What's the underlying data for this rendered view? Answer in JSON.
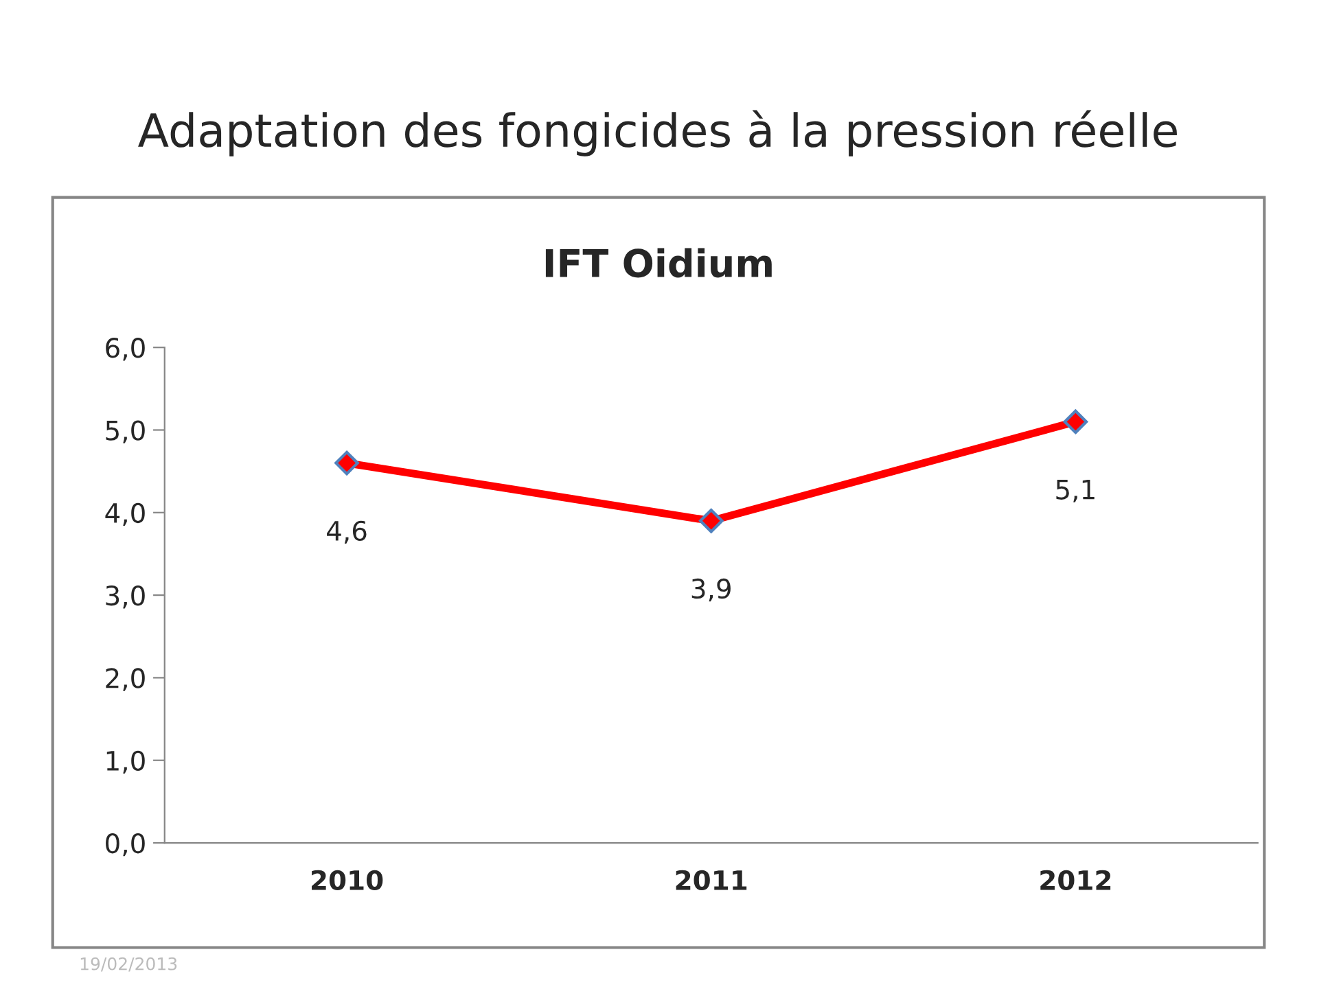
{
  "chart_data": {
    "type": "line",
    "title": "Adaptation des fongicides à la pression réelle",
    "subtitle": "IFT Oidium",
    "categories": [
      "2010",
      "2011",
      "2012"
    ],
    "series": [
      {
        "color": "#ff0000",
        "values": [
          4.6,
          3.9,
          5.1
        ],
        "value_labels": [
          "4,6",
          "3,9",
          "5,1"
        ]
      }
    ],
    "ylim": [
      0,
      6
    ],
    "yticks": [
      {
        "value": 0,
        "label": "0,0"
      },
      {
        "value": 1,
        "label": "1,0"
      },
      {
        "value": 2,
        "label": "2,0"
      },
      {
        "value": 3,
        "label": "3,0"
      },
      {
        "value": 4,
        "label": "4,0"
      },
      {
        "value": 5,
        "label": "5,0"
      },
      {
        "value": 6,
        "label": "6,0"
      }
    ],
    "grid": false,
    "marker": "diamond",
    "line_style": "solid",
    "annotations": [
      "19/02/2013"
    ]
  }
}
